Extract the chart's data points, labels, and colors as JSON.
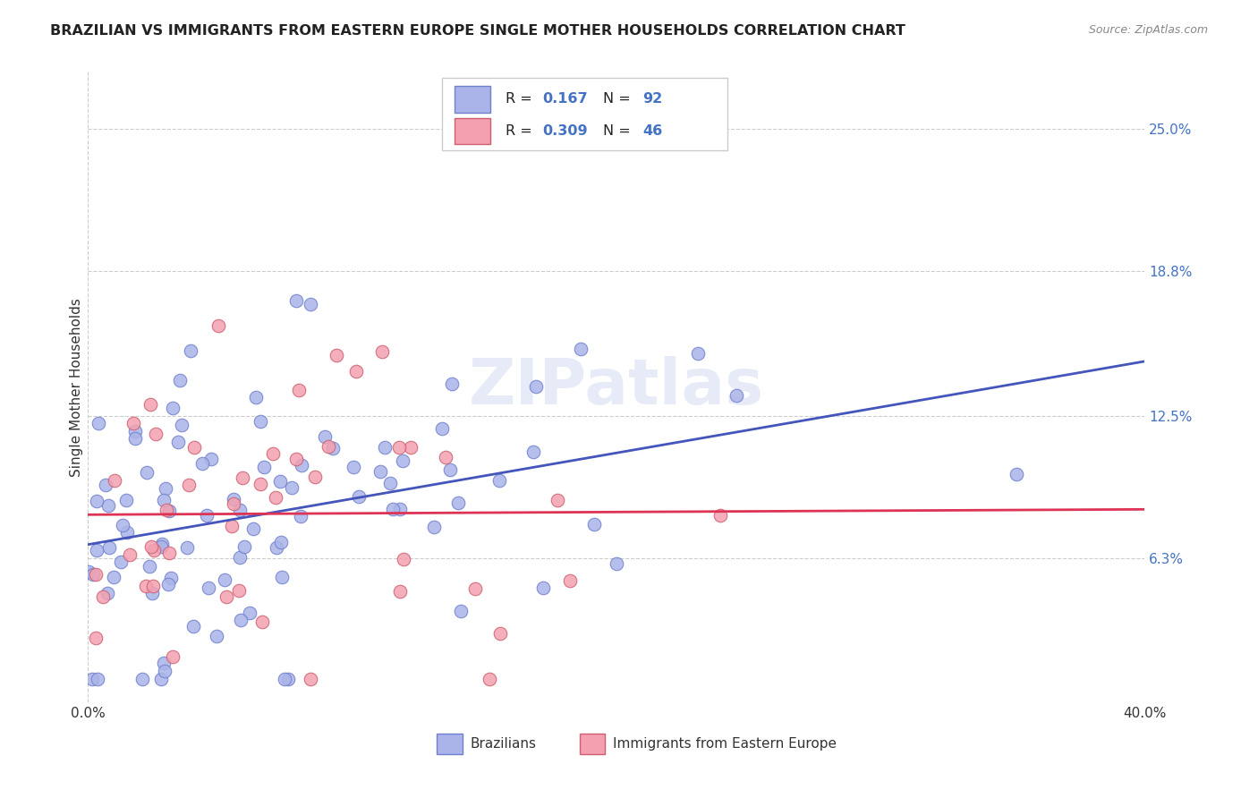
{
  "title": "BRAZILIAN VS IMMIGRANTS FROM EASTERN EUROPE SINGLE MOTHER HOUSEHOLDS CORRELATION CHART",
  "source": "Source: ZipAtlas.com",
  "ylabel": "Single Mother Households",
  "xlim": [
    0.0,
    0.4
  ],
  "ylim": [
    0.0,
    0.275
  ],
  "y_tick_labels": [
    "6.3%",
    "12.5%",
    "18.8%",
    "25.0%"
  ],
  "y_tick_positions": [
    0.063,
    0.125,
    0.188,
    0.25
  ],
  "grid_color": "#cccccc",
  "background_color": "#ffffff",
  "series": [
    {
      "name": "Brazilians",
      "R": 0.167,
      "N": 92,
      "color": "#aab4e8",
      "edge_color": "#7080cc",
      "trend_color": "#4455bb"
    },
    {
      "name": "Immigrants from Eastern Europe",
      "R": 0.309,
      "N": 46,
      "color": "#f4a0b0",
      "edge_color": "#cc6070",
      "trend_color": "#dd3355"
    }
  ]
}
